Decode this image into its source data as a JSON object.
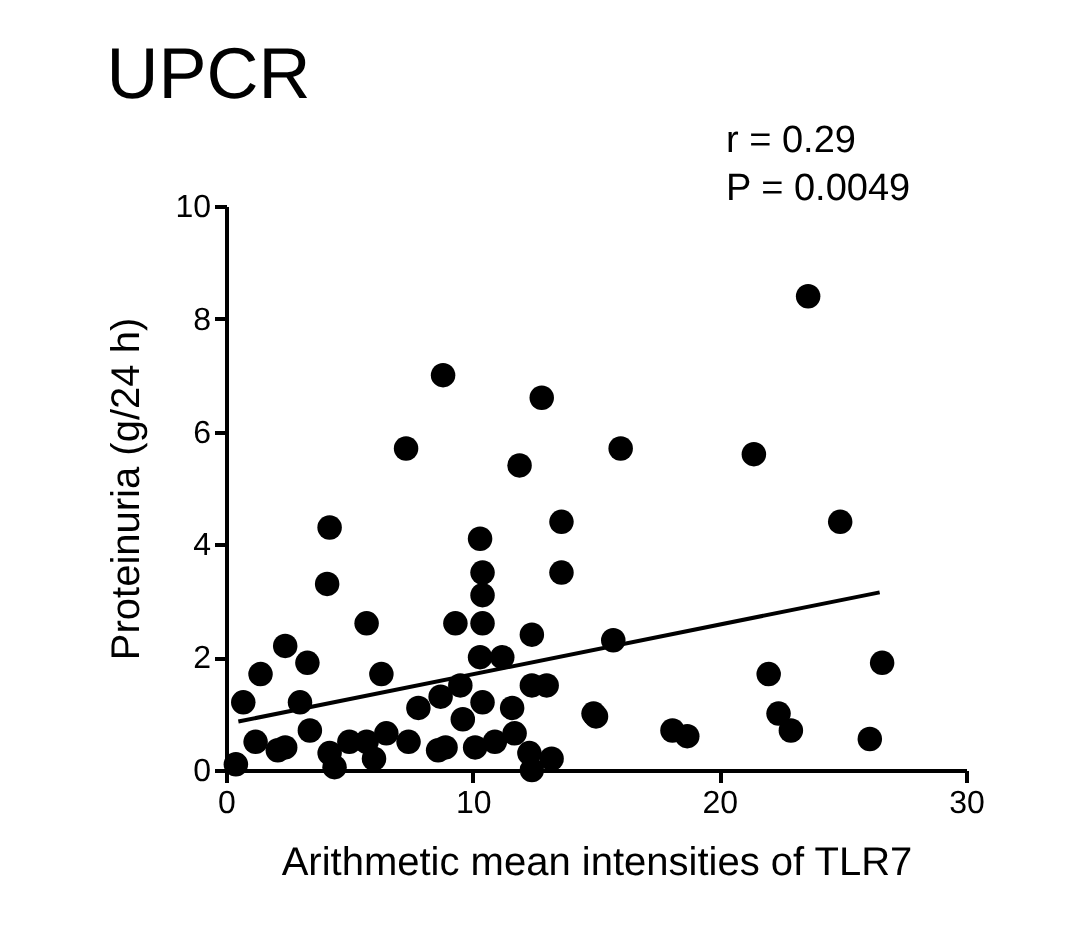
{
  "chart_data": {
    "type": "scatter",
    "title": "UPCR",
    "xlabel": "Arithmetic mean intensities of TLR7",
    "ylabel": "Proteinuria (g/24 h)",
    "xlim": [
      0,
      30
    ],
    "xticks": [
      0,
      10,
      20,
      30
    ],
    "ylim": [
      0,
      10
    ],
    "yticks": [
      0,
      2,
      4,
      6,
      8,
      10
    ],
    "grid": false,
    "annotations": [
      "r = 0.29",
      "P = 0.0049"
    ],
    "series": [
      {
        "marker": "circle",
        "color": "#000000",
        "x": [
          8.8,
          12.8,
          7.3,
          11.9,
          4.2,
          13.6,
          10.3,
          4.1,
          13.6,
          10.4,
          10.4,
          5.7,
          9.3,
          10.4,
          2.4,
          12.4,
          3.3,
          10.3,
          11.2,
          1.4,
          6.3,
          12.4,
          13.0,
          0.7,
          3.0,
          8.7,
          9.5,
          10.4,
          11.6,
          14.9,
          1.2,
          2.4,
          3.4,
          4.2,
          5.0,
          5.7,
          6.5,
          7.4,
          7.8,
          8.9,
          9.6,
          10.1,
          10.9,
          11.7,
          12.3,
          12.4,
          13.2,
          0.4,
          2.1,
          6.0,
          4.4,
          8.6,
          23.6,
          16.0,
          21.4,
          24.9,
          15.7,
          22.0,
          26.6,
          15.0,
          18.1,
          18.7,
          22.4,
          22.9,
          26.1
        ],
        "values": [
          7.0,
          6.6,
          5.7,
          5.4,
          4.3,
          4.4,
          4.1,
          3.3,
          3.5,
          3.5,
          3.1,
          2.6,
          2.6,
          2.6,
          2.2,
          2.4,
          1.9,
          2.0,
          2.0,
          1.7,
          1.7,
          1.5,
          1.5,
          1.2,
          1.2,
          1.3,
          1.5,
          1.2,
          1.1,
          1.0,
          0.5,
          0.4,
          0.7,
          0.3,
          0.5,
          0.5,
          0.65,
          0.5,
          1.1,
          0.4,
          0.9,
          0.4,
          0.5,
          0.65,
          0.3,
          0.0,
          0.2,
          0.1,
          0.35,
          0.2,
          0.05,
          0.35,
          8.4,
          5.7,
          5.6,
          4.4,
          2.3,
          1.7,
          1.9,
          0.95,
          0.7,
          0.6,
          1.0,
          0.7,
          0.55
        ]
      },
      {
        "type": "line",
        "color": "#000000",
        "x": [
          0.5,
          26.5
        ],
        "values": [
          0.86,
          3.15
        ]
      }
    ]
  }
}
